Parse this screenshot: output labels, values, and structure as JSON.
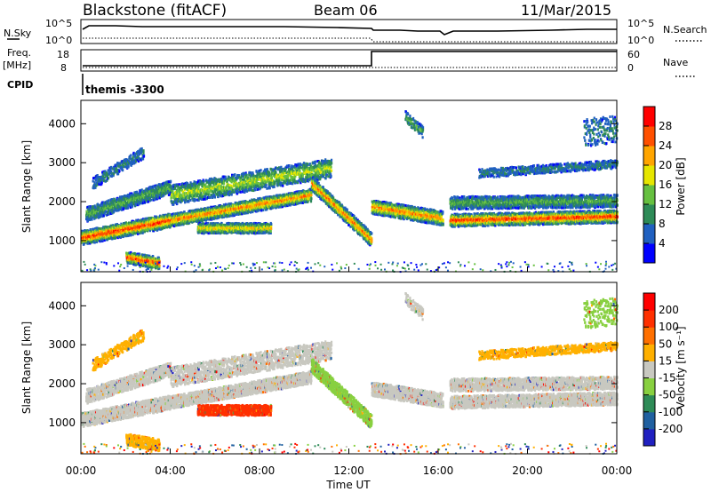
{
  "header": {
    "station": "Blackstone (fitACF)",
    "beam": "Beam 06",
    "date": "11/Mar/2015"
  },
  "noise_panel": {
    "left_label": "N.Sky",
    "left_ticks": [
      "10^5",
      "10^0"
    ],
    "right_ticks": [
      "10^5",
      "10^0"
    ],
    "right_label": "N.Search"
  },
  "freq_panel": {
    "left_label_top": "Freq.",
    "left_label_bottom": "[MHz]",
    "left_ticks": [
      "18",
      "8"
    ],
    "right_ticks": [
      "60",
      "0"
    ],
    "right_label": "Nave"
  },
  "cpid": {
    "label": "CPID",
    "value": "themis -3300"
  },
  "colors": {
    "power": [
      "#0000ff",
      "#2060c0",
      "#2e8b57",
      "#66c040",
      "#e6e600",
      "#ffa500",
      "#ff5000",
      "#ff0000"
    ],
    "velocity": [
      "#2020c0",
      "#2060a0",
      "#2e8b57",
      "#88d040",
      "#c8c8c0",
      "#ffb000",
      "#ff7000",
      "#ff3000",
      "#ff0000"
    ]
  },
  "chart_data": [
    {
      "type": "heatmap",
      "name": "power",
      "ylabel": "Slant Range [km]",
      "yticks": [
        1000,
        2000,
        3000,
        4000
      ],
      "ylim": [
        200,
        4600
      ],
      "xlim": [
        0,
        24
      ],
      "colorbar": {
        "label": "Power [dB]",
        "ticks": [
          "4",
          "8",
          "12",
          "16",
          "20",
          "24",
          "28"
        ],
        "range": [
          0,
          32
        ]
      }
    },
    {
      "type": "heatmap",
      "name": "velocity",
      "ylabel": "Slant Range [km]",
      "yticks": [
        1000,
        2000,
        3000,
        4000
      ],
      "ylim": [
        200,
        4600
      ],
      "xlim": [
        0,
        24
      ],
      "colorbar": {
        "label": "Velocity [m s⁻¹]",
        "ticks": [
          "-200",
          "-100",
          "-50",
          "-15",
          "15",
          "50",
          "100",
          "200"
        ]
      }
    }
  ],
  "xaxis": {
    "label": "Time UT",
    "ticks": [
      "00:00",
      "04:00",
      "08:00",
      "12:00",
      "16:00",
      "20:00",
      "00:00"
    ]
  }
}
